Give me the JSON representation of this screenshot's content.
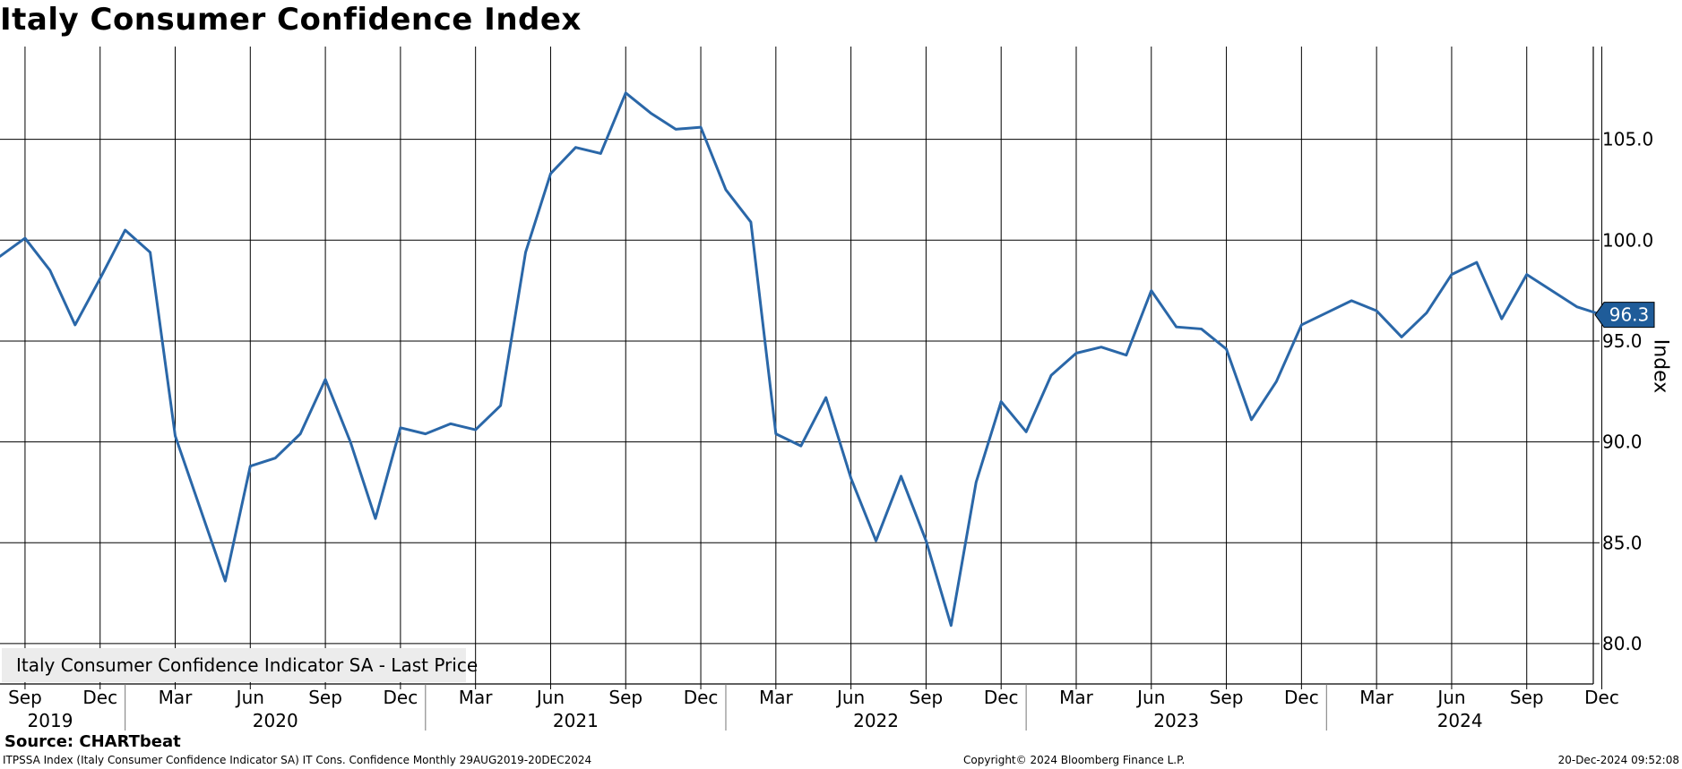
{
  "title": "Italy Consumer Confidence Index",
  "legend": {
    "label": "Italy Consumer Confidence Indicator SA - Last Price",
    "color": "#2a67a8"
  },
  "last_value_label": "96.3",
  "source": "Source: CHARTbeat",
  "footer": {
    "left": "ITPSSA Index (Italy Consumer Confidence Indicator SA) IT Cons. Confidence  Monthly 29AUG2019-20DEC2024",
    "center": "Copyright© 2024 Bloomberg Finance L.P.",
    "right": "20-Dec-2024 09:52:08"
  },
  "chart_data": {
    "type": "line",
    "title": "Italy Consumer Confidence Index",
    "ylabel": "Index",
    "ylim": [
      78.0,
      109.6
    ],
    "yticks": [
      "80.0",
      "85.0",
      "90.0",
      "95.0",
      "100.0",
      "105.0"
    ],
    "x_month_ticks": [
      "Sep",
      "Dec",
      "Mar",
      "Jun",
      "Sep",
      "Dec",
      "Mar",
      "Jun",
      "Sep",
      "Dec",
      "Mar",
      "Jun",
      "Sep",
      "Dec",
      "Mar",
      "Jun",
      "Sep",
      "Dec",
      "Mar",
      "Jun",
      "Sep",
      "Dec"
    ],
    "x_year_labels": [
      "2019",
      "2020",
      "2021",
      "2022",
      "2023",
      "2024"
    ],
    "grid": true,
    "legend_position": "bottom-left",
    "series": [
      {
        "name": "Italy Consumer Confidence Indicator SA - Last Price",
        "color": "#2a67a8",
        "x": [
          "2019-08",
          "2019-09",
          "2019-10",
          "2019-11",
          "2019-12",
          "2020-01",
          "2020-02",
          "2020-03",
          "2020-05",
          "2020-06",
          "2020-07",
          "2020-08",
          "2020-09",
          "2020-10",
          "2020-11",
          "2020-12",
          "2021-01",
          "2021-02",
          "2021-03",
          "2021-04",
          "2021-05",
          "2021-06",
          "2021-07",
          "2021-08",
          "2021-09",
          "2021-10",
          "2021-11",
          "2021-12",
          "2022-01",
          "2022-02",
          "2022-03",
          "2022-04",
          "2022-05",
          "2022-06",
          "2022-07",
          "2022-08",
          "2022-09",
          "2022-10",
          "2022-11",
          "2022-12",
          "2023-01",
          "2023-02",
          "2023-03",
          "2023-04",
          "2023-05",
          "2023-06",
          "2023-07",
          "2023-08",
          "2023-09",
          "2023-10",
          "2023-11",
          "2023-12",
          "2024-01",
          "2024-02",
          "2024-03",
          "2024-04",
          "2024-05",
          "2024-06",
          "2024-07",
          "2024-08",
          "2024-09",
          "2024-10",
          "2024-11",
          "2024-12"
        ],
        "values": [
          99.2,
          100.1,
          98.5,
          95.8,
          98.1,
          100.5,
          99.4,
          90.3,
          83.1,
          88.8,
          89.2,
          90.4,
          93.1,
          90.0,
          86.2,
          90.7,
          90.4,
          90.9,
          90.6,
          91.8,
          99.4,
          103.3,
          104.6,
          104.3,
          107.3,
          106.3,
          105.5,
          105.6,
          102.5,
          100.9,
          90.4,
          89.8,
          92.2,
          88.2,
          85.1,
          88.3,
          85.1,
          80.9,
          88.0,
          92.0,
          90.5,
          93.3,
          94.4,
          94.7,
          94.3,
          97.5,
          95.7,
          95.6,
          94.6,
          91.1,
          93.0,
          95.8,
          96.4,
          97.0,
          96.5,
          95.2,
          96.4,
          98.3,
          98.9,
          96.1,
          98.3,
          97.5,
          96.7,
          96.3
        ]
      }
    ]
  }
}
